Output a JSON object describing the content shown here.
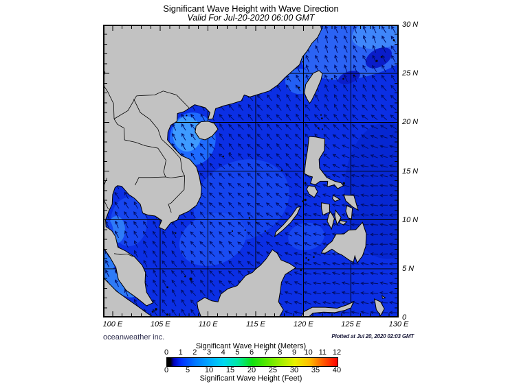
{
  "title": "Significant Wave Height with Wave Direction",
  "subtitle": "Valid For Jul-20-2020 06:00 GMT",
  "credit": "oceanweather inc.",
  "plotted_at": "Plotted at Jul 20, 2020 02:03 GMT",
  "map": {
    "lon_min": 99,
    "lon_max": 130,
    "lat_min": 0,
    "lat_max": 30,
    "x_tick_labels": [
      "100 E",
      "105 E",
      "110 E",
      "115 E",
      "120 E",
      "125 E",
      "130 E"
    ],
    "x_tick_lons": [
      100,
      105,
      110,
      115,
      120,
      125,
      130
    ],
    "y_tick_labels": [
      "30 N",
      "25 N",
      "20 N",
      "15 N",
      "10 N",
      "5 N",
      "0"
    ],
    "y_tick_lats": [
      30,
      25,
      20,
      15,
      10,
      5,
      0
    ],
    "grid_lons": [
      105,
      110,
      115,
      120,
      125
    ],
    "grid_lats": [
      5,
      10,
      15,
      20,
      25
    ],
    "land_color": "#c2c2c2",
    "sea_color": "#0b2fe4",
    "arrow_color": "#000d66",
    "frame_color": "#000000"
  },
  "colorbar": {
    "title_top": "Significant Wave Height (Meters)",
    "title_bottom": "Significant Wave Height (Feet)",
    "meters_ticks": [
      0,
      1,
      2,
      3,
      4,
      5,
      6,
      7,
      8,
      9,
      10,
      11,
      12
    ],
    "meters_max": 12,
    "feet_ticks": [
      0,
      5,
      10,
      15,
      20,
      25,
      30,
      35,
      40
    ],
    "feet_max": 40,
    "stops": [
      {
        "pct": 0.0,
        "color": "#000000"
      },
      {
        "pct": 2.0,
        "color": "#000000"
      },
      {
        "pct": 4.0,
        "color": "#0000bb"
      },
      {
        "pct": 8.3,
        "color": "#0030ff"
      },
      {
        "pct": 16.7,
        "color": "#0078ff"
      },
      {
        "pct": 25.0,
        "color": "#00aaff"
      },
      {
        "pct": 33.3,
        "color": "#00d8f0"
      },
      {
        "pct": 41.7,
        "color": "#00e8a0"
      },
      {
        "pct": 50.0,
        "color": "#10e010"
      },
      {
        "pct": 58.3,
        "color": "#58e800"
      },
      {
        "pct": 66.7,
        "color": "#a0ee00"
      },
      {
        "pct": 75.0,
        "color": "#e8f000"
      },
      {
        "pct": 83.3,
        "color": "#ffc000"
      },
      {
        "pct": 91.7,
        "color": "#ff5800"
      },
      {
        "pct": 100.0,
        "color": "#ff0000"
      }
    ]
  }
}
